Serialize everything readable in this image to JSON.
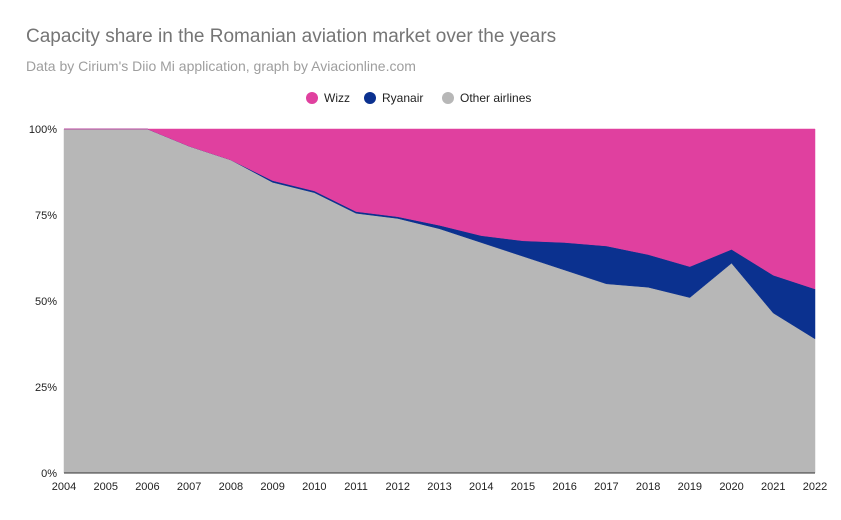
{
  "chart_data": {
    "type": "area",
    "stacked": "percent",
    "title": "Capacity share in the Romanian aviation market over the years",
    "subtitle": "Data by Cirium's Diio Mi application, graph by Aviacionline.com",
    "x": [
      "2004",
      "2005",
      "2006",
      "2007",
      "2008",
      "2009",
      "2010",
      "2011",
      "2012",
      "2013",
      "2014",
      "2015",
      "2016",
      "2017",
      "2018",
      "2019",
      "2020",
      "2021",
      "2022"
    ],
    "series": [
      {
        "name": "Wizz",
        "color": "#e0409f",
        "values": [
          0,
          0,
          0,
          5,
          9,
          15,
          18,
          24,
          25.5,
          28,
          31,
          32.5,
          33,
          34,
          36.5,
          40,
          35,
          42.5,
          46.5
        ]
      },
      {
        "name": "Ryanair",
        "color": "#0b318f",
        "values": [
          0,
          0,
          0,
          0,
          0,
          0.5,
          0.5,
          0.5,
          0.5,
          1,
          2,
          4.5,
          8,
          11,
          9.5,
          9,
          4,
          11,
          14.5
        ]
      },
      {
        "name": "Other airlines",
        "color": "#b7b7b7",
        "values": [
          100,
          100,
          100,
          95,
          91,
          84.5,
          81.5,
          75.5,
          74,
          71,
          67,
          63,
          59,
          55,
          54,
          51,
          61,
          46.5,
          39
        ]
      }
    ],
    "ylim": [
      0,
      100
    ],
    "yticks": [
      "0%",
      "25%",
      "50%",
      "75%",
      "100%"
    ],
    "legend_position": "top-center",
    "grid": false
  }
}
